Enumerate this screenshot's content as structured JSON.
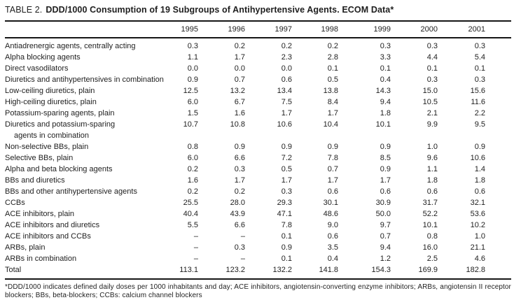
{
  "title": {
    "prefix": "TABLE 2.",
    "main": "DDD/1000 Consumption of 19 Subgroups of Antihypertensive Agents. ECOM Data*"
  },
  "chart_data": {
    "type": "table",
    "title": "TABLE 2. DDD/1000 Consumption of 19 Subgroups of Antihypertensive Agents. ECOM Data*",
    "columns": [
      "1995",
      "1996",
      "1997",
      "1998",
      "1999",
      "2000",
      "2001"
    ],
    "rows": [
      {
        "label": "Antiadrenergic agents, centrally acting",
        "values": [
          "0.3",
          "0.2",
          "0.2",
          "0.2",
          "0.3",
          "0.3",
          "0.3"
        ]
      },
      {
        "label": "Alpha blocking agents",
        "values": [
          "1.1",
          "1.7",
          "2.3",
          "2.8",
          "3.3",
          "4.4",
          "5.4"
        ]
      },
      {
        "label": "Direct vasodilators",
        "values": [
          "0.0",
          "0.0",
          "0.0",
          "0.1",
          "0.1",
          "0.1",
          "0.1"
        ]
      },
      {
        "label": "Diuretics and antihypertensives in combination",
        "values": [
          "0.9",
          "0.7",
          "0.6",
          "0.5",
          "0.4",
          "0.3",
          "0.3"
        ]
      },
      {
        "label": "Low-ceiling diuretics, plain",
        "values": [
          "12.5",
          "13.2",
          "13.4",
          "13.8",
          "14.3",
          "15.0",
          "15.6"
        ]
      },
      {
        "label": "High-ceiling diuretics, plain",
        "values": [
          "6.0",
          "6.7",
          "7.5",
          "8.4",
          "9.4",
          "10.5",
          "11.6"
        ]
      },
      {
        "label": "Potassium-sparing agents, plain",
        "values": [
          "1.5",
          "1.6",
          "1.7",
          "1.7",
          "1.8",
          "2.1",
          "2.2"
        ]
      },
      {
        "label": "Diuretics and potassium-sparing",
        "label2": "agents in combination",
        "values": [
          "10.7",
          "10.8",
          "10.6",
          "10.4",
          "10.1",
          "9.9",
          "9.5"
        ]
      },
      {
        "label": "Non-selective BBs, plain",
        "values": [
          "0.8",
          "0.9",
          "0.9",
          "0.9",
          "0.9",
          "1.0",
          "0.9"
        ]
      },
      {
        "label": "Selective BBs, plain",
        "values": [
          "6.0",
          "6.6",
          "7.2",
          "7.8",
          "8.5",
          "9.6",
          "10.6"
        ]
      },
      {
        "label": "Alpha and beta blocking agents",
        "values": [
          "0.2",
          "0.3",
          "0.5",
          "0.7",
          "0.9",
          "1.1",
          "1.4"
        ]
      },
      {
        "label": "BBs and diuretics",
        "values": [
          "1.6",
          "1.7",
          "1.7",
          "1.7",
          "1.7",
          "1.8",
          "1.8"
        ]
      },
      {
        "label": "BBs and other antihypertensive agents",
        "values": [
          "0.2",
          "0.2",
          "0.3",
          "0.6",
          "0.6",
          "0.6",
          "0.6"
        ]
      },
      {
        "label": "CCBs",
        "values": [
          "25.5",
          "28.0",
          "29.3",
          "30.1",
          "30.9",
          "31.7",
          "32.1"
        ]
      },
      {
        "label": "ACE inhibitors, plain",
        "values": [
          "40.4",
          "43.9",
          "47.1",
          "48.6",
          "50.0",
          "52.2",
          "53.6"
        ]
      },
      {
        "label": "ACE inhibitors and diuretics",
        "values": [
          "5.5",
          "6.6",
          "7.8",
          "9.0",
          "9.7",
          "10.1",
          "10.2"
        ]
      },
      {
        "label": "ACE inhibitors and CCBs",
        "values": [
          "–",
          "–",
          "0.1",
          "0.6",
          "0.7",
          "0.8",
          "1.0"
        ]
      },
      {
        "label": "ARBs, plain",
        "values": [
          "–",
          "0.3",
          "0.9",
          "3.5",
          "9.4",
          "16.0",
          "21.1"
        ]
      },
      {
        "label": "ARBs in combination",
        "values": [
          "–",
          "–",
          "0.1",
          "0.4",
          "1.2",
          "2.5",
          "4.6"
        ]
      },
      {
        "label": "Total",
        "values": [
          "113.1",
          "123.2",
          "132.2",
          "141.8",
          "154.3",
          "169.9",
          "182.8"
        ]
      }
    ]
  },
  "footnote": "*DDD/1000 indicates defined daily doses per 1000 inhabitants and day; ACE inhibitors, angiotensin-converting enzyme inhibitors; ARBs, angiotensin II receptor blockers; BBs, beta-blockers; CCBs: calcium channel blockers",
  "colors": {
    "background": "#ffffff",
    "text": "#1e1e1e",
    "rule": "#161616"
  }
}
